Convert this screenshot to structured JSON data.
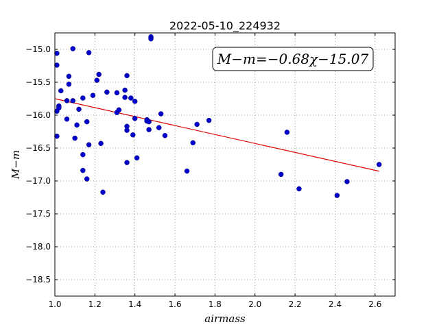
{
  "chart_data": {
    "type": "scatter",
    "title": "2022-05-10_224932",
    "xlabel": "airmass",
    "ylabel": "M−m",
    "xlim": [
      1.0,
      2.7
    ],
    "ylim": [
      -18.75,
      -14.75
    ],
    "y_inverted": true,
    "grid": true,
    "x_ticks": [
      1.0,
      1.2,
      1.4,
      1.6,
      1.8,
      2.0,
      2.2,
      2.4,
      2.6
    ],
    "x_tick_labels": [
      "1.0",
      "1.2",
      "1.4",
      "1.6",
      "1.8",
      "2.0",
      "2.2",
      "2.4",
      "2.6"
    ],
    "y_ticks": [
      -15.0,
      -15.5,
      -16.0,
      -16.5,
      -17.0,
      -17.5,
      -18.0,
      -18.5
    ],
    "y_tick_labels": [
      "−15.0",
      "−15.5",
      "−16.0",
      "−16.5",
      "−17.0",
      "−17.5",
      "−18.0",
      "−18.5"
    ],
    "annotation": "M−m=−0.68χ−15.07",
    "point_color": "#0000cc",
    "fit_color": "#dd0000",
    "fit": {
      "slope": -0.68,
      "intercept": -15.07,
      "x_range": [
        1.0,
        2.62
      ]
    },
    "points": [
      [
        1.01,
        -15.06
      ],
      [
        1.01,
        -15.24
      ],
      [
        1.01,
        -15.94
      ],
      [
        1.01,
        -16.32
      ],
      [
        1.02,
        -15.86
      ],
      [
        1.02,
        -15.89
      ],
      [
        1.03,
        -15.63
      ],
      [
        1.06,
        -15.78
      ],
      [
        1.06,
        -16.06
      ],
      [
        1.07,
        -15.41
      ],
      [
        1.07,
        -15.53
      ],
      [
        1.09,
        -15.78
      ],
      [
        1.09,
        -14.99
      ],
      [
        1.1,
        -16.35
      ],
      [
        1.11,
        -16.15
      ],
      [
        1.12,
        -15.91
      ],
      [
        1.14,
        -16.6
      ],
      [
        1.14,
        -16.84
      ],
      [
        1.14,
        -15.74
      ],
      [
        1.16,
        -16.1
      ],
      [
        1.16,
        -16.97
      ],
      [
        1.17,
        -16.45
      ],
      [
        1.17,
        -15.05
      ],
      [
        1.19,
        -15.7
      ],
      [
        1.21,
        -15.47
      ],
      [
        1.22,
        -15.38
      ],
      [
        1.23,
        -16.43
      ],
      [
        1.24,
        -17.17
      ],
      [
        1.26,
        -15.65
      ],
      [
        1.31,
        -15.66
      ],
      [
        1.31,
        -15.96
      ],
      [
        1.32,
        -15.92
      ],
      [
        1.35,
        -15.73
      ],
      [
        1.35,
        -15.62
      ],
      [
        1.36,
        -15.4
      ],
      [
        1.36,
        -16.17
      ],
      [
        1.36,
        -16.23
      ],
      [
        1.36,
        -16.72
      ],
      [
        1.38,
        -15.74
      ],
      [
        1.39,
        -16.3
      ],
      [
        1.4,
        -15.79
      ],
      [
        1.4,
        -16.05
      ],
      [
        1.41,
        -16.65
      ],
      [
        1.46,
        -16.07
      ],
      [
        1.46,
        -16.09
      ],
      [
        1.47,
        -16.22
      ],
      [
        1.47,
        -16.1
      ],
      [
        1.48,
        -14.81
      ],
      [
        1.48,
        -14.84
      ],
      [
        1.52,
        -16.19
      ],
      [
        1.53,
        -15.98
      ],
      [
        1.55,
        -16.31
      ],
      [
        1.66,
        -16.85
      ],
      [
        1.69,
        -16.42
      ],
      [
        1.71,
        -16.14
      ],
      [
        1.77,
        -16.08
      ],
      [
        2.13,
        -16.9
      ],
      [
        2.16,
        -16.26
      ],
      [
        2.22,
        -17.12
      ],
      [
        2.41,
        -17.22
      ],
      [
        2.46,
        -17.01
      ],
      [
        2.62,
        -16.75
      ]
    ]
  }
}
